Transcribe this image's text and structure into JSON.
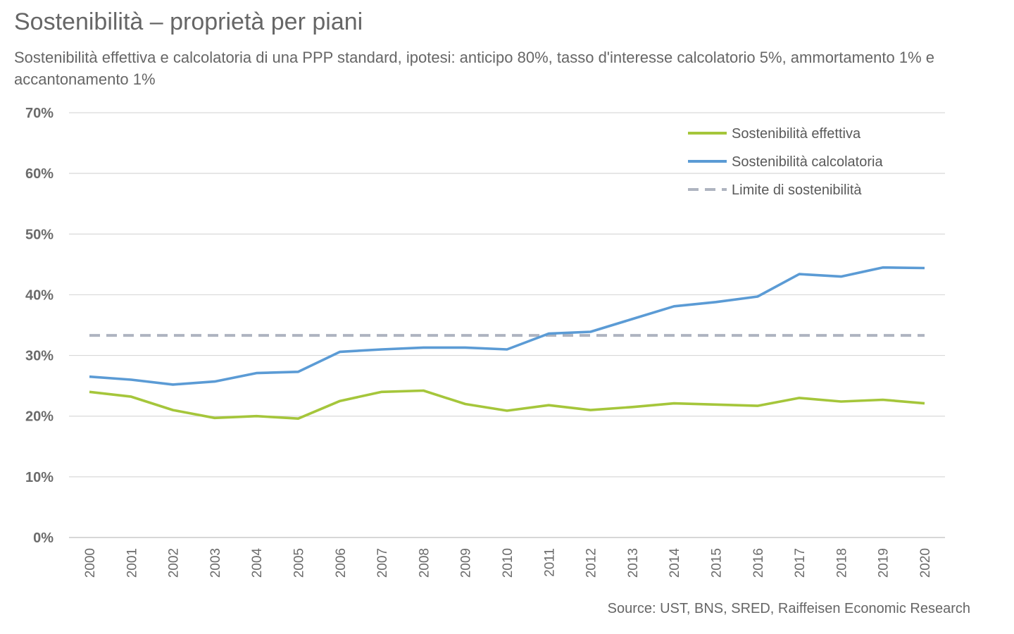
{
  "title": "Sostenibilità – proprietà per piani",
  "subtitle": "Sostenibilità effettiva e calcolatoria di una PPP standard, ipotesi: anticipo 80%, tasso d'interesse calcolatorio 5%, ammortamento 1% e accantonamento 1%",
  "source": "Source: UST, BNS, SRED, Raiffeisen Economic Research",
  "chart_data": {
    "type": "line",
    "categories": [
      "2000",
      "2001",
      "2002",
      "2003",
      "2004",
      "2005",
      "2006",
      "2007",
      "2008",
      "2009",
      "2010",
      "2011",
      "2012",
      "2013",
      "2014",
      "2015",
      "2016",
      "2017",
      "2018",
      "2019",
      "2020"
    ],
    "ylim": [
      0,
      70
    ],
    "ytick_labels": [
      "0%",
      "10%",
      "20%",
      "30%",
      "40%",
      "50%",
      "60%",
      "70%"
    ],
    "yticks": [
      0,
      10,
      20,
      30,
      40,
      50,
      60,
      70
    ],
    "grid": true,
    "legend_position": "top-right",
    "series": [
      {
        "name": "Sostenibilità effettiva",
        "color": "#a5c63b",
        "style": "solid",
        "values": [
          24.0,
          23.2,
          21.0,
          19.7,
          20.0,
          19.6,
          22.5,
          24.0,
          24.2,
          22.0,
          20.9,
          21.8,
          21.0,
          21.5,
          22.1,
          21.9,
          21.7,
          23.0,
          22.4,
          22.7,
          22.1
        ]
      },
      {
        "name": "Sostenibilità calcolatoria",
        "color": "#5b9bd5",
        "style": "solid",
        "values": [
          26.5,
          26.0,
          25.2,
          25.7,
          27.1,
          27.3,
          30.6,
          31.0,
          31.3,
          31.3,
          31.0,
          33.6,
          33.9,
          36.0,
          38.1,
          38.8,
          39.7,
          43.4,
          43.0,
          44.5,
          44.4
        ]
      },
      {
        "name": "Limite di sostenibilità",
        "color": "#aeb4c0",
        "style": "dashed",
        "values": [
          33.3,
          33.3,
          33.3,
          33.3,
          33.3,
          33.3,
          33.3,
          33.3,
          33.3,
          33.3,
          33.3,
          33.3,
          33.3,
          33.3,
          33.3,
          33.3,
          33.3,
          33.3,
          33.3,
          33.3,
          33.3
        ]
      }
    ]
  }
}
